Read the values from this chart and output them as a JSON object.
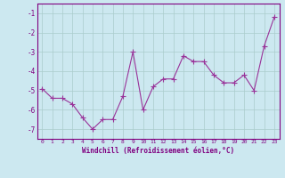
{
  "x": [
    0,
    1,
    2,
    3,
    4,
    5,
    6,
    7,
    8,
    9,
    10,
    11,
    12,
    13,
    14,
    15,
    16,
    17,
    18,
    19,
    20,
    21,
    22,
    23
  ],
  "y": [
    -4.9,
    -5.4,
    -5.4,
    -5.7,
    -6.4,
    -7.0,
    -6.5,
    -6.5,
    -5.3,
    -3.0,
    -6.0,
    -4.8,
    -4.4,
    -4.4,
    -3.2,
    -3.5,
    -3.5,
    -4.2,
    -4.6,
    -4.6,
    -4.2,
    -5.0,
    -2.7,
    -1.2
  ],
  "line_color": "#993399",
  "marker": "+",
  "markersize": 4,
  "linewidth": 0.8,
  "markeredgewidth": 0.8,
  "xlabel": "Windchill (Refroidissement éolien,°C)",
  "xlabel_fontsize": 5.5,
  "xtick_fontsize": 4.5,
  "ytick_fontsize": 5.5,
  "ylim": [
    -7.5,
    -0.5
  ],
  "xlim": [
    -0.5,
    23.5
  ],
  "yticks": [
    -7,
    -6,
    -5,
    -4,
    -3,
    -2,
    -1
  ],
  "xticks": [
    0,
    1,
    2,
    3,
    4,
    5,
    6,
    7,
    8,
    9,
    10,
    11,
    12,
    13,
    14,
    15,
    16,
    17,
    18,
    19,
    20,
    21,
    22,
    23
  ],
  "bg_color": "#cce8f0",
  "grid_color": "#aacccc",
  "tick_color": "#800080",
  "spine_color": "#800080",
  "xlabel_color": "#800080"
}
